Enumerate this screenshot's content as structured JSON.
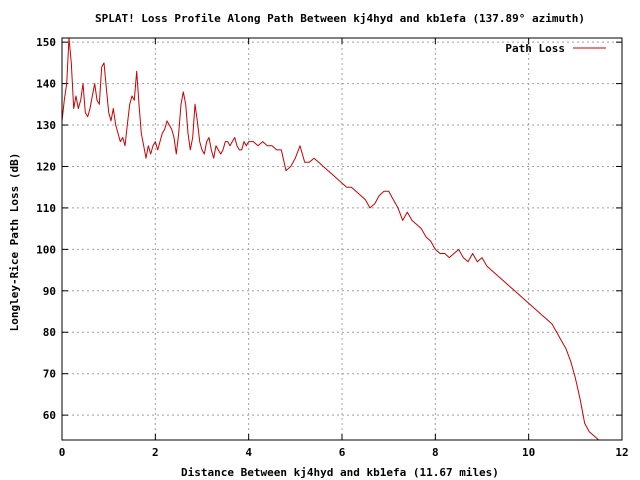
{
  "chart_data": {
    "type": "line",
    "title": "SPLAT! Loss Profile Along Path Between kj4hyd and kb1efa (137.89° azimuth)",
    "xlabel": "Distance Between kj4hyd and kb1efa (11.67 miles)",
    "ylabel": "Longley-Rice Path Loss (dB)",
    "xlim": [
      0,
      12
    ],
    "ylim": [
      54,
      151
    ],
    "xticks": [
      "0",
      "2",
      "4",
      "6",
      "8",
      "10",
      "12"
    ],
    "yticks": [
      "60",
      "70",
      "80",
      "90",
      "100",
      "110",
      "120",
      "130",
      "140",
      "150"
    ],
    "grid": true,
    "legend_position": "top-right",
    "series": [
      {
        "name": "Path Loss",
        "color": "#cc0000",
        "x": [
          0.0,
          0.05,
          0.1,
          0.15,
          0.2,
          0.25,
          0.3,
          0.35,
          0.4,
          0.45,
          0.5,
          0.55,
          0.6,
          0.65,
          0.7,
          0.75,
          0.8,
          0.85,
          0.9,
          0.95,
          1.0,
          1.05,
          1.1,
          1.15,
          1.2,
          1.25,
          1.3,
          1.35,
          1.4,
          1.45,
          1.5,
          1.55,
          1.6,
          1.65,
          1.7,
          1.75,
          1.8,
          1.85,
          1.9,
          1.95,
          2.0,
          2.05,
          2.1,
          2.15,
          2.2,
          2.25,
          2.3,
          2.35,
          2.4,
          2.45,
          2.5,
          2.55,
          2.6,
          2.65,
          2.7,
          2.75,
          2.8,
          2.85,
          2.9,
          2.95,
          3.0,
          3.05,
          3.1,
          3.15,
          3.2,
          3.25,
          3.3,
          3.35,
          3.4,
          3.45,
          3.5,
          3.55,
          3.6,
          3.65,
          3.7,
          3.75,
          3.8,
          3.85,
          3.9,
          3.95,
          4.0,
          4.1,
          4.2,
          4.3,
          4.4,
          4.5,
          4.6,
          4.7,
          4.8,
          4.9,
          5.0,
          5.1,
          5.2,
          5.3,
          5.4,
          5.5,
          5.6,
          5.7,
          5.8,
          5.9,
          6.0,
          6.1,
          6.2,
          6.3,
          6.4,
          6.5,
          6.6,
          6.7,
          6.8,
          6.9,
          7.0,
          7.1,
          7.2,
          7.3,
          7.4,
          7.5,
          7.6,
          7.7,
          7.8,
          7.9,
          8.0,
          8.1,
          8.2,
          8.3,
          8.4,
          8.5,
          8.6,
          8.7,
          8.8,
          8.9,
          9.0,
          9.1,
          9.2,
          9.3,
          9.4,
          9.5,
          9.6,
          9.7,
          9.8,
          9.9,
          10.0,
          10.1,
          10.2,
          10.3,
          10.4,
          10.5,
          10.6,
          10.7,
          10.8,
          10.9,
          11.0,
          11.1,
          11.2,
          11.3,
          11.4,
          11.5,
          11.58
        ],
        "y": [
          131,
          136,
          140,
          151,
          145,
          134,
          137,
          134,
          136,
          140,
          133,
          132,
          134,
          137,
          140,
          136,
          135,
          144,
          145,
          139,
          133,
          131,
          134,
          130,
          128,
          126,
          127,
          125,
          130,
          135,
          137,
          136,
          143,
          135,
          128,
          125,
          122,
          125,
          123,
          125,
          126,
          124,
          126,
          128,
          129,
          131,
          130,
          129,
          127,
          123,
          128,
          135,
          138,
          135,
          128,
          124,
          127,
          135,
          131,
          126,
          124,
          123,
          126,
          127,
          124,
          122,
          125,
          124,
          123,
          124,
          126,
          126,
          125,
          126,
          127,
          125,
          124,
          124,
          126,
          125,
          126,
          126,
          125,
          126,
          125,
          125,
          124,
          124,
          119,
          120,
          122,
          125,
          121,
          121,
          122,
          121,
          120,
          119,
          118,
          117,
          116,
          115,
          115,
          114,
          113,
          112,
          110,
          111,
          113,
          114,
          114,
          112,
          110,
          107,
          109,
          107,
          106,
          105,
          103,
          102,
          100,
          99,
          99,
          98,
          99,
          100,
          98,
          97,
          99,
          97,
          98,
          96,
          95,
          94,
          93,
          92,
          91,
          90,
          89,
          88,
          87,
          86,
          85,
          84,
          83,
          82,
          80,
          78,
          76,
          73,
          69,
          64,
          58,
          56,
          55,
          54,
          54
        ],
        "x_display": [
          0.0,
          0.04,
          0.08,
          0.12,
          0.16,
          0.2,
          0.24,
          0.3,
          0.36,
          0.42,
          0.48,
          0.54,
          0.6,
          0.66,
          0.72,
          0.78,
          0.84,
          0.9,
          0.94,
          0.98,
          1.02,
          1.06,
          1.1,
          1.14,
          1.2,
          1.26,
          1.32,
          1.38,
          1.44,
          1.5,
          1.56,
          1.6,
          1.66,
          1.72,
          1.78,
          1.84,
          1.9,
          1.96,
          2.02,
          2.08,
          2.14,
          2.2,
          2.26,
          2.32,
          2.38,
          2.44,
          2.5,
          2.56,
          2.62,
          2.68,
          2.74,
          2.8,
          2.86,
          2.92,
          2.98,
          3.04,
          3.1,
          3.16,
          3.22,
          3.28,
          3.34,
          3.4,
          3.46,
          3.52,
          3.58,
          3.64,
          3.7,
          3.76,
          3.82,
          3.88,
          3.94,
          4.0,
          4.1,
          4.2,
          4.3,
          4.4,
          4.5,
          4.6,
          4.7,
          4.8,
          4.9,
          5.0,
          5.1,
          5.2,
          5.3,
          5.4,
          5.5,
          5.6,
          5.7,
          5.8,
          5.9,
          6.0,
          6.1,
          6.2,
          6.3,
          6.4,
          6.5,
          6.6,
          6.7,
          6.8,
          6.9,
          7.0,
          7.1,
          7.2,
          7.3,
          7.4,
          7.5,
          7.6,
          7.7,
          7.8,
          7.9,
          8.0,
          8.1,
          8.2,
          8.3,
          8.4,
          8.5,
          8.6,
          8.7,
          8.8,
          8.9,
          9.0,
          9.1,
          9.2,
          9.3,
          9.4,
          9.5,
          9.6,
          9.7,
          9.8,
          9.9,
          10.0,
          10.1,
          10.2,
          10.3,
          10.4,
          10.5,
          10.6,
          10.7,
          10.8,
          10.9,
          11.0,
          11.1,
          11.2,
          11.3,
          11.35,
          11.4,
          11.45,
          11.5,
          11.55,
          11.58
        ]
      }
    ]
  }
}
